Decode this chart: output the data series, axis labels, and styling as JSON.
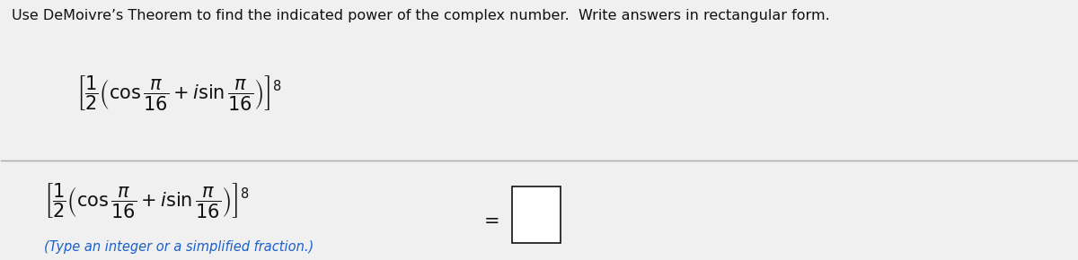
{
  "title_text": "Use DeMoivre’s Theorem to find the indicated power of the complex number.  Write answers in rectangular form.",
  "footnote": "(Type an integer or a simplified fraction.)",
  "bg_color": "#f0f0f0",
  "text_color": "#111111",
  "blue_color": "#1a5fcc",
  "line_color": "#aaaaaa",
  "title_fontsize": 11.5,
  "expr_fontsize": 15,
  "footnote_fontsize": 10.5
}
